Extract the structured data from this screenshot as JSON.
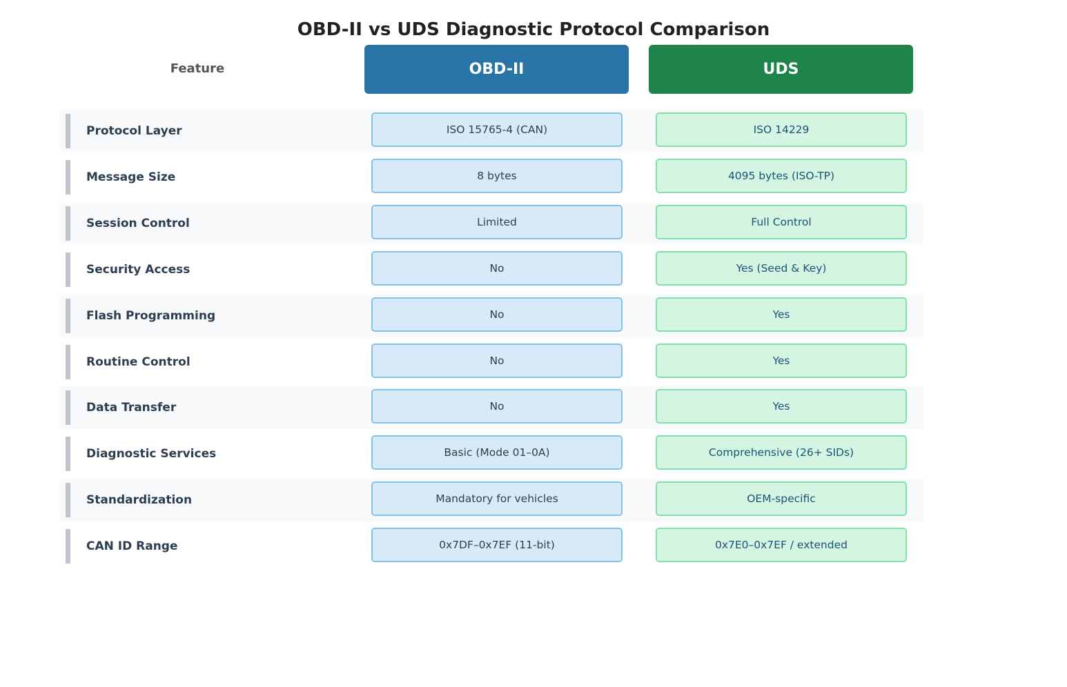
{
  "title": "OBD-II vs UDS Diagnostic Protocol Comparison",
  "headers": {
    "feature": "Feature",
    "obd": "OBD-II",
    "uds": "UDS"
  },
  "colors": {
    "obd_header": "#2874a6",
    "uds_header": "#1e8449",
    "obd_cell": "#d6eaf8",
    "uds_cell": "#d5f5e3"
  },
  "rows": [
    {
      "feature": "Protocol Layer",
      "obd": "ISO 15765-4 (CAN)",
      "uds": "ISO 14229"
    },
    {
      "feature": "Message Size",
      "obd": "8 bytes",
      "uds": "4095 bytes (ISO-TP)"
    },
    {
      "feature": "Session Control",
      "obd": "Limited",
      "uds": "Full Control"
    },
    {
      "feature": "Security Access",
      "obd": "No",
      "uds": "Yes (Seed & Key)"
    },
    {
      "feature": "Flash Programming",
      "obd": "No",
      "uds": "Yes"
    },
    {
      "feature": "Routine Control",
      "obd": "No",
      "uds": "Yes"
    },
    {
      "feature": "Data Transfer",
      "obd": "No",
      "uds": "Yes"
    },
    {
      "feature": "Diagnostic Services",
      "obd": "Basic (Mode 01–0A)",
      "uds": "Comprehensive (26+ SIDs)"
    },
    {
      "feature": "Standardization",
      "obd": "Mandatory for vehicles",
      "uds": "OEM-specific"
    },
    {
      "feature": "CAN ID Range",
      "obd": "0x7DF–0x7EF (11-bit)",
      "uds": "0x7E0–0x7EF / extended"
    }
  ]
}
